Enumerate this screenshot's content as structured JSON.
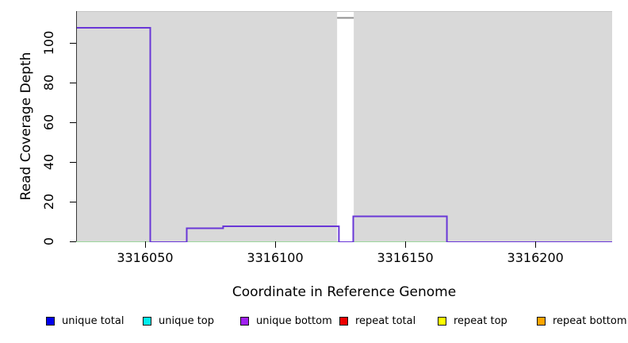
{
  "chart_data": {
    "type": "line",
    "subtype": "step-coverage-plot",
    "title": "",
    "xlabel": "Coordinate in Reference Genome",
    "ylabel": "Read Coverage Depth",
    "xlim": [
      3316023.5,
      3316229.5
    ],
    "ylim": [
      0,
      116
    ],
    "x_ticks": [
      3316050,
      3316100,
      3316150,
      3316200
    ],
    "y_ticks": [
      0,
      20,
      40,
      60,
      80,
      100
    ],
    "grid": "off",
    "plot_background": "#d9d9d9",
    "legend_position": "bottom",
    "series": [
      {
        "name": "unique coverage step line",
        "color": "#6937d7",
        "width": 2,
        "points": [
          [
            3316023.5,
            108
          ],
          [
            3316052,
            108
          ],
          [
            3316052,
            0
          ],
          [
            3316066,
            0
          ],
          [
            3316066,
            7
          ],
          [
            3316080,
            7
          ],
          [
            3316080,
            8
          ],
          [
            3316124.5,
            8
          ],
          [
            3316124.5,
            0
          ],
          [
            3316130,
            0
          ],
          [
            3316130,
            13
          ],
          [
            3316166,
            13
          ],
          [
            3316166,
            0
          ],
          [
            3316229.5,
            0
          ]
        ]
      },
      {
        "name": "zero baseline line",
        "color": "#7dc87d",
        "width": 1.5,
        "points": [
          [
            3316023.5,
            0
          ],
          [
            3316229.5,
            0
          ]
        ]
      }
    ],
    "mask_band": {
      "x0": 3316123.8,
      "x1": 3316130.2,
      "fill": "#ffffff",
      "cap_value": 113,
      "cap_color": "#8f8f8f"
    },
    "legend": [
      {
        "label": "unique total",
        "color": "#0000ee"
      },
      {
        "label": "unique top",
        "color": "#00eeee"
      },
      {
        "label": "unique bottom",
        "color": "#a020f0"
      },
      {
        "label": "repeat total",
        "color": "#ee0000"
      },
      {
        "label": "repeat top",
        "color": "#ffff00"
      },
      {
        "label": "repeat bottom",
        "color": "#ffa500"
      }
    ]
  }
}
